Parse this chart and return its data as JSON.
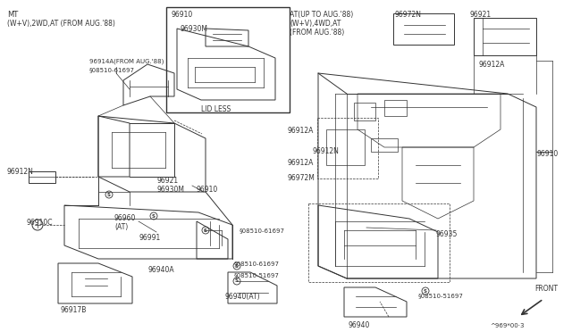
{
  "bg_color": "#ffffff",
  "line_color": "#333333",
  "fig_width": 6.4,
  "fig_height": 3.72,
  "dpi": 100,
  "header_left_1": "MT",
  "header_left_2": "(W+V),2WD,AT (FROM AUG.'88)",
  "header_right_1": "AT(UP TO AUG.'88)",
  "header_right_2": "(W+V),4WD,AT",
  "header_right_3": "(FROM AUG.'88)",
  "footer": "^969*00·3",
  "front_label": "FRONT",
  "lw_main": 0.7,
  "lw_thin": 0.5,
  "lw_dashed": 0.5,
  "screw_symbol": "§"
}
